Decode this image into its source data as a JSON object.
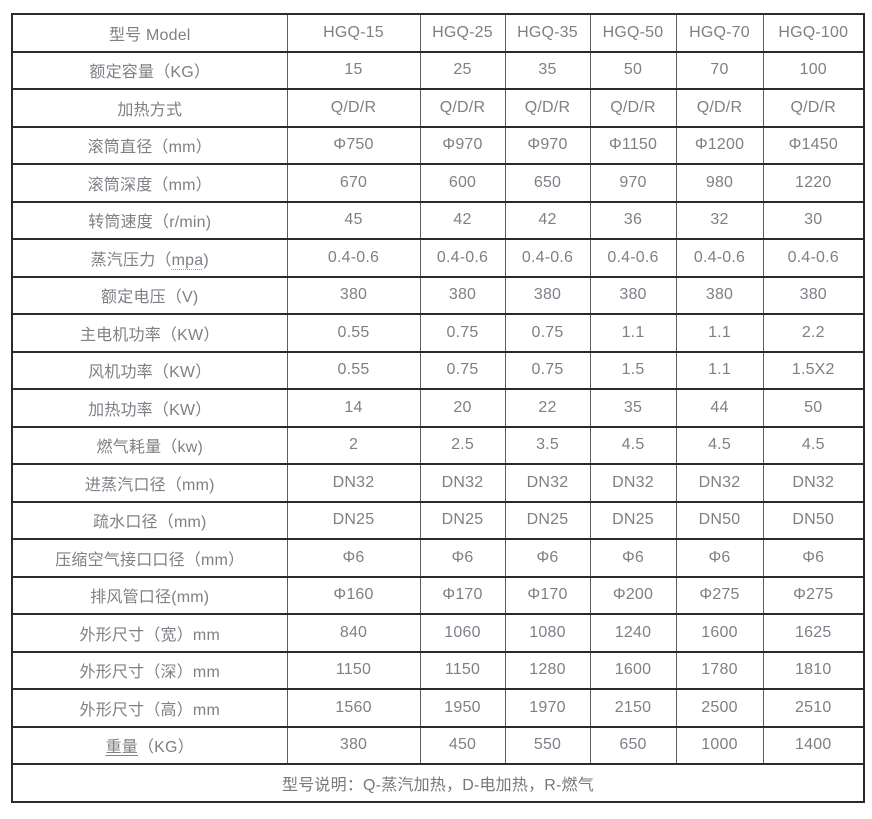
{
  "colors": {
    "background": "#ffffff",
    "text": "#7d8186",
    "border_horizontal": "#2b2b2b",
    "border_vertical": "#5f5f5f",
    "spellcheck_underline": "#d98379"
  },
  "table": {
    "header": {
      "label": "型号 Model",
      "models": [
        "HGQ-15",
        "HGQ-25",
        "HGQ-35",
        "HGQ-50",
        "HGQ-70",
        "HGQ-100"
      ]
    },
    "rows": [
      {
        "label": "额定容量（KG）",
        "values": [
          "15",
          "25",
          "35",
          "50",
          "70",
          "100"
        ]
      },
      {
        "label": "加热方式",
        "values": [
          "Q/D/R",
          "Q/D/R",
          "Q/D/R",
          "Q/D/R",
          "Q/D/R",
          "Q/D/R"
        ]
      },
      {
        "label": "滚筒直径（mm）",
        "values": [
          "Φ750",
          "Φ970",
          "Φ970",
          "Φ1150",
          "Φ1200",
          "Φ1450"
        ]
      },
      {
        "label": "滚筒深度（mm）",
        "values": [
          "670",
          "600",
          "650",
          "970",
          "980",
          "1220"
        ]
      },
      {
        "label": "转筒速度（r/min)",
        "values": [
          "45",
          "42",
          "42",
          "36",
          "32",
          "30"
        ]
      },
      {
        "label": "蒸汽压力（mpa)",
        "underline": {
          "text": "mpa",
          "style": "dotted-red"
        },
        "values": [
          "0.4-0.6",
          "0.4-0.6",
          "0.4-0.6",
          "0.4-0.6",
          "0.4-0.6",
          "0.4-0.6"
        ]
      },
      {
        "label": "额定电压（V)",
        "values": [
          "380",
          "380",
          "380",
          "380",
          "380",
          "380"
        ]
      },
      {
        "label": "主电机功率（KW）",
        "values": [
          "0.55",
          "0.75",
          "0.75",
          "1.1",
          "1.1",
          "2.2"
        ]
      },
      {
        "label": "风机功率（KW）",
        "values": [
          "0.55",
          "0.75",
          "0.75",
          "1.5",
          "1.1",
          "1.5X2"
        ]
      },
      {
        "label": "加热功率（KW）",
        "values": [
          "14",
          "20",
          "22",
          "35",
          "44",
          "50"
        ]
      },
      {
        "label": "燃气耗量（kw)",
        "values": [
          "2",
          "2.5",
          "3.5",
          "4.5",
          "4.5",
          "4.5"
        ]
      },
      {
        "label": "进蒸汽口径（mm)",
        "values": [
          "DN32",
          "DN32",
          "DN32",
          "DN32",
          "DN32",
          "DN32"
        ]
      },
      {
        "label": "疏水口径（mm)",
        "values": [
          "DN25",
          "DN25",
          "DN25",
          "DN25",
          "DN50",
          "DN50"
        ]
      },
      {
        "label": "压缩空气接口口径（mm）",
        "values": [
          "Φ6",
          "Φ6",
          "Φ6",
          "Φ6",
          "Φ6",
          "Φ6"
        ]
      },
      {
        "label": "排风管口径(mm)",
        "values": [
          "Φ160",
          "Φ170",
          "Φ170",
          "Φ200",
          "Φ275",
          "Φ275"
        ]
      },
      {
        "label": "外形尺寸（宽）mm",
        "values": [
          "840",
          "1060",
          "1080",
          "1240",
          "1600",
          "1625"
        ]
      },
      {
        "label": "外形尺寸（深）mm",
        "values": [
          "1150",
          "1150",
          "1280",
          "1600",
          "1780",
          "1810"
        ]
      },
      {
        "label": "外形尺寸（高）mm",
        "values": [
          "1560",
          "1950",
          "1970",
          "2150",
          "2500",
          "2510"
        ]
      },
      {
        "label": "重量（KG）",
        "underline": {
          "text": "重量",
          "style": "solid"
        },
        "values": [
          "380",
          "450",
          "550",
          "650",
          "1000",
          "1400"
        ]
      }
    ],
    "footer": "型号说明：Q-蒸汽加热，D-电加热，R-燃气"
  }
}
